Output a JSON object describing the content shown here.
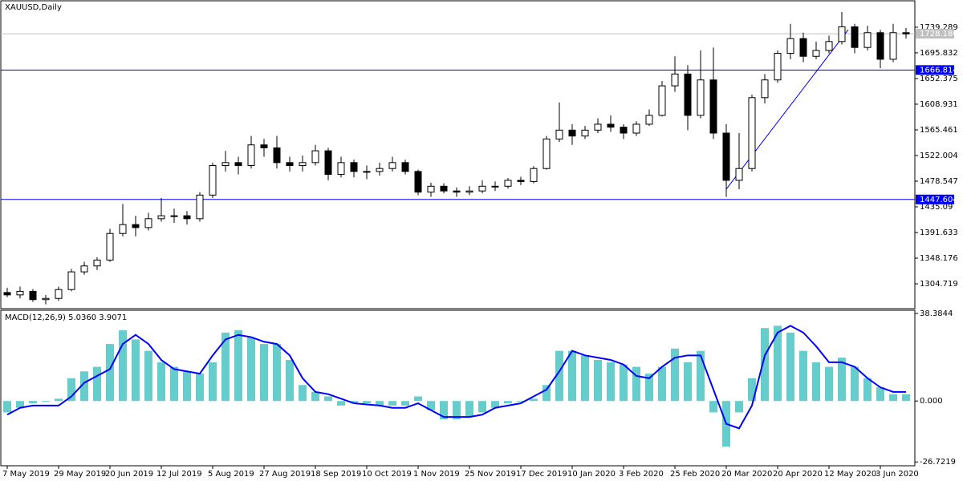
{
  "chart_data": [
    {
      "type": "candlestick",
      "title": "XAUUSD,Daily",
      "categories": [
        "7 May 2019",
        null,
        null,
        null,
        "29 May 2019",
        null,
        null,
        null,
        "20 Jun 2019",
        null,
        null,
        null,
        "12 Jul 2019",
        null,
        null,
        null,
        "5 Aug 2019",
        null,
        null,
        null,
        "27 Aug 2019",
        null,
        null,
        null,
        "18 Sep 2019",
        null,
        null,
        null,
        "10 Oct 2019",
        null,
        null,
        null,
        "1 Nov 2019",
        null,
        null,
        null,
        "25 Nov 2019",
        null,
        null,
        null,
        "17 Dec 2019",
        null,
        null,
        null,
        "10 Jan 2020",
        null,
        null,
        null,
        "3 Feb 2020",
        null,
        null,
        null,
        "25 Feb 2020",
        null,
        null,
        null,
        "20 Mar 2020",
        null,
        null,
        null,
        "20 Apr 2020",
        null,
        null,
        null,
        "12 May 2020",
        null,
        null,
        null,
        "3 Jun 2020",
        null,
        null
      ],
      "open": [
        1290,
        1286,
        1292,
        1278,
        1280,
        1295,
        1325,
        1335,
        1345,
        1390,
        1405,
        1400,
        1415,
        1420,
        1420,
        1415,
        1455,
        1505,
        1510,
        1505,
        1540,
        1535,
        1510,
        1505,
        1510,
        1530,
        1490,
        1510,
        1495,
        1495,
        1500,
        1510,
        1495,
        1460,
        1470,
        1462,
        1460,
        1462,
        1470,
        1470,
        1480,
        1478,
        1500,
        1550,
        1565,
        1555,
        1565,
        1575,
        1570,
        1560,
        1575,
        1590,
        1640,
        1660,
        1590,
        1650,
        1560,
        1480,
        1500,
        1620,
        1650,
        1695,
        1720,
        1690,
        1700,
        1715,
        1740,
        1705,
        1730,
        1685,
        1730
      ],
      "high": [
        1298,
        1300,
        1296,
        1286,
        1300,
        1330,
        1342,
        1350,
        1398,
        1440,
        1420,
        1425,
        1450,
        1432,
        1428,
        1460,
        1510,
        1530,
        1520,
        1555,
        1550,
        1555,
        1520,
        1522,
        1540,
        1535,
        1520,
        1515,
        1505,
        1510,
        1520,
        1515,
        1498,
        1476,
        1475,
        1468,
        1470,
        1480,
        1478,
        1484,
        1486,
        1504,
        1555,
        1612,
        1575,
        1572,
        1585,
        1590,
        1575,
        1580,
        1600,
        1648,
        1690,
        1675,
        1700,
        1705,
        1575,
        1560,
        1625,
        1660,
        1700,
        1745,
        1730,
        1715,
        1725,
        1765,
        1745,
        1742,
        1735,
        1745,
        1738
      ],
      "low": [
        1282,
        1280,
        1274,
        1270,
        1276,
        1292,
        1320,
        1328,
        1342,
        1385,
        1385,
        1395,
        1410,
        1408,
        1405,
        1410,
        1450,
        1495,
        1490,
        1500,
        1520,
        1500,
        1495,
        1495,
        1505,
        1480,
        1485,
        1485,
        1482,
        1488,
        1495,
        1490,
        1455,
        1452,
        1458,
        1452,
        1455,
        1458,
        1462,
        1466,
        1472,
        1475,
        1498,
        1545,
        1540,
        1550,
        1560,
        1562,
        1550,
        1555,
        1572,
        1588,
        1630,
        1565,
        1585,
        1550,
        1452,
        1465,
        1495,
        1610,
        1645,
        1685,
        1680,
        1685,
        1695,
        1710,
        1695,
        1700,
        1670,
        1680,
        1720
      ],
      "close": [
        1286,
        1292,
        1278,
        1280,
        1295,
        1325,
        1335,
        1345,
        1390,
        1405,
        1400,
        1415,
        1420,
        1420,
        1415,
        1455,
        1505,
        1510,
        1505,
        1540,
        1535,
        1510,
        1505,
        1510,
        1530,
        1490,
        1510,
        1495,
        1495,
        1500,
        1510,
        1495,
        1460,
        1470,
        1462,
        1460,
        1462,
        1470,
        1470,
        1480,
        1478,
        1500,
        1550,
        1565,
        1555,
        1565,
        1575,
        1570,
        1560,
        1575,
        1590,
        1640,
        1660,
        1590,
        1650,
        1560,
        1480,
        1500,
        1620,
        1650,
        1695,
        1720,
        1690,
        1700,
        1715,
        1740,
        1705,
        1730,
        1685,
        1730,
        1728
      ],
      "ylim": [
        1262.7,
        1784
      ],
      "yticks": [
        1739.289,
        1695.832,
        1652.375,
        1608.931,
        1565.461,
        1522.004,
        1478.547,
        1435.09,
        1391.633,
        1348.176,
        1304.719
      ],
      "current_price": {
        "value": 1728.18,
        "label": "1728.180",
        "color": "#c0c0c0"
      },
      "price_lines": [
        {
          "value": 1666.814,
          "color": "#0000ff"
        },
        {
          "value": 1447.604,
          "color": "#0000ff"
        }
      ],
      "trendline": {
        "from": [
          56,
          1465
        ],
        "to": [
          65.5,
          1735
        ],
        "color": "#0000ff"
      }
    },
    {
      "type": "bar",
      "title": "MACD(12,26,9) 5.0360 3.9071",
      "series": [
        {
          "type": "bar",
          "color": "#66cccc",
          "values": [
            -5,
            -3,
            -1,
            0,
            1,
            10,
            13,
            15,
            25,
            31,
            27,
            22,
            17,
            15,
            13,
            12,
            17,
            30,
            31,
            28,
            25,
            25,
            18,
            7,
            4,
            2,
            -2,
            -1,
            -1,
            -2,
            -2,
            -2,
            2,
            -4,
            -8,
            -8,
            -7,
            -5,
            -3,
            -1,
            0,
            1,
            7,
            22,
            22,
            20,
            18,
            17,
            16,
            15,
            12,
            15,
            23,
            17,
            22,
            -5,
            -20,
            -5,
            10,
            32,
            33,
            30,
            22,
            17,
            15,
            19,
            15,
            10,
            6,
            3,
            3
          ]
        },
        {
          "type": "line",
          "color": "#0000ff",
          "values": [
            -6,
            -3,
            -2,
            -2,
            -2,
            2,
            8,
            11,
            14,
            25,
            29,
            25,
            18,
            14,
            13,
            12,
            20,
            27,
            29,
            28,
            26,
            25,
            20,
            10,
            4,
            3,
            1,
            -1,
            -1.5,
            -2,
            -3,
            -3,
            -1,
            -4,
            -7,
            -7,
            -7,
            -6,
            -3,
            -2,
            -1,
            2,
            5,
            13,
            22,
            20,
            19,
            18,
            16,
            11,
            10,
            15,
            19,
            20,
            20,
            5,
            -10,
            -12,
            -2,
            20,
            30,
            33,
            30,
            24,
            17,
            17,
            15,
            10,
            6,
            4,
            4
          ]
        }
      ],
      "ylim": [
        -28.4,
        39.8
      ],
      "yticks": [
        38.3844,
        {
          "value": 0,
          "label": "0.000"
        },
        -26.7219
      ]
    }
  ]
}
